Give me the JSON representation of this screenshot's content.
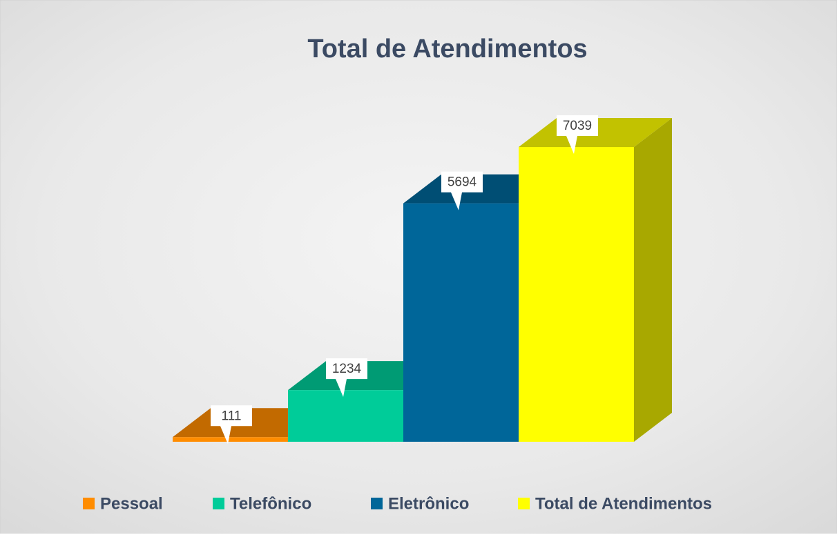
{
  "chart_data": {
    "type": "bar3d",
    "title": "Total de Atendimentos",
    "series": [
      {
        "name": "Pessoal",
        "color": "#ff8c00",
        "values": [
          111
        ]
      },
      {
        "name": "Telefônico",
        "color": "#00cc99",
        "values": [
          1234
        ]
      },
      {
        "name": "Eletrônico",
        "color": "#006699",
        "values": [
          5694
        ]
      },
      {
        "name": "Total de Atendimentos",
        "color": "#ffff00",
        "values": [
          7039
        ]
      }
    ],
    "legend": "bottom"
  }
}
